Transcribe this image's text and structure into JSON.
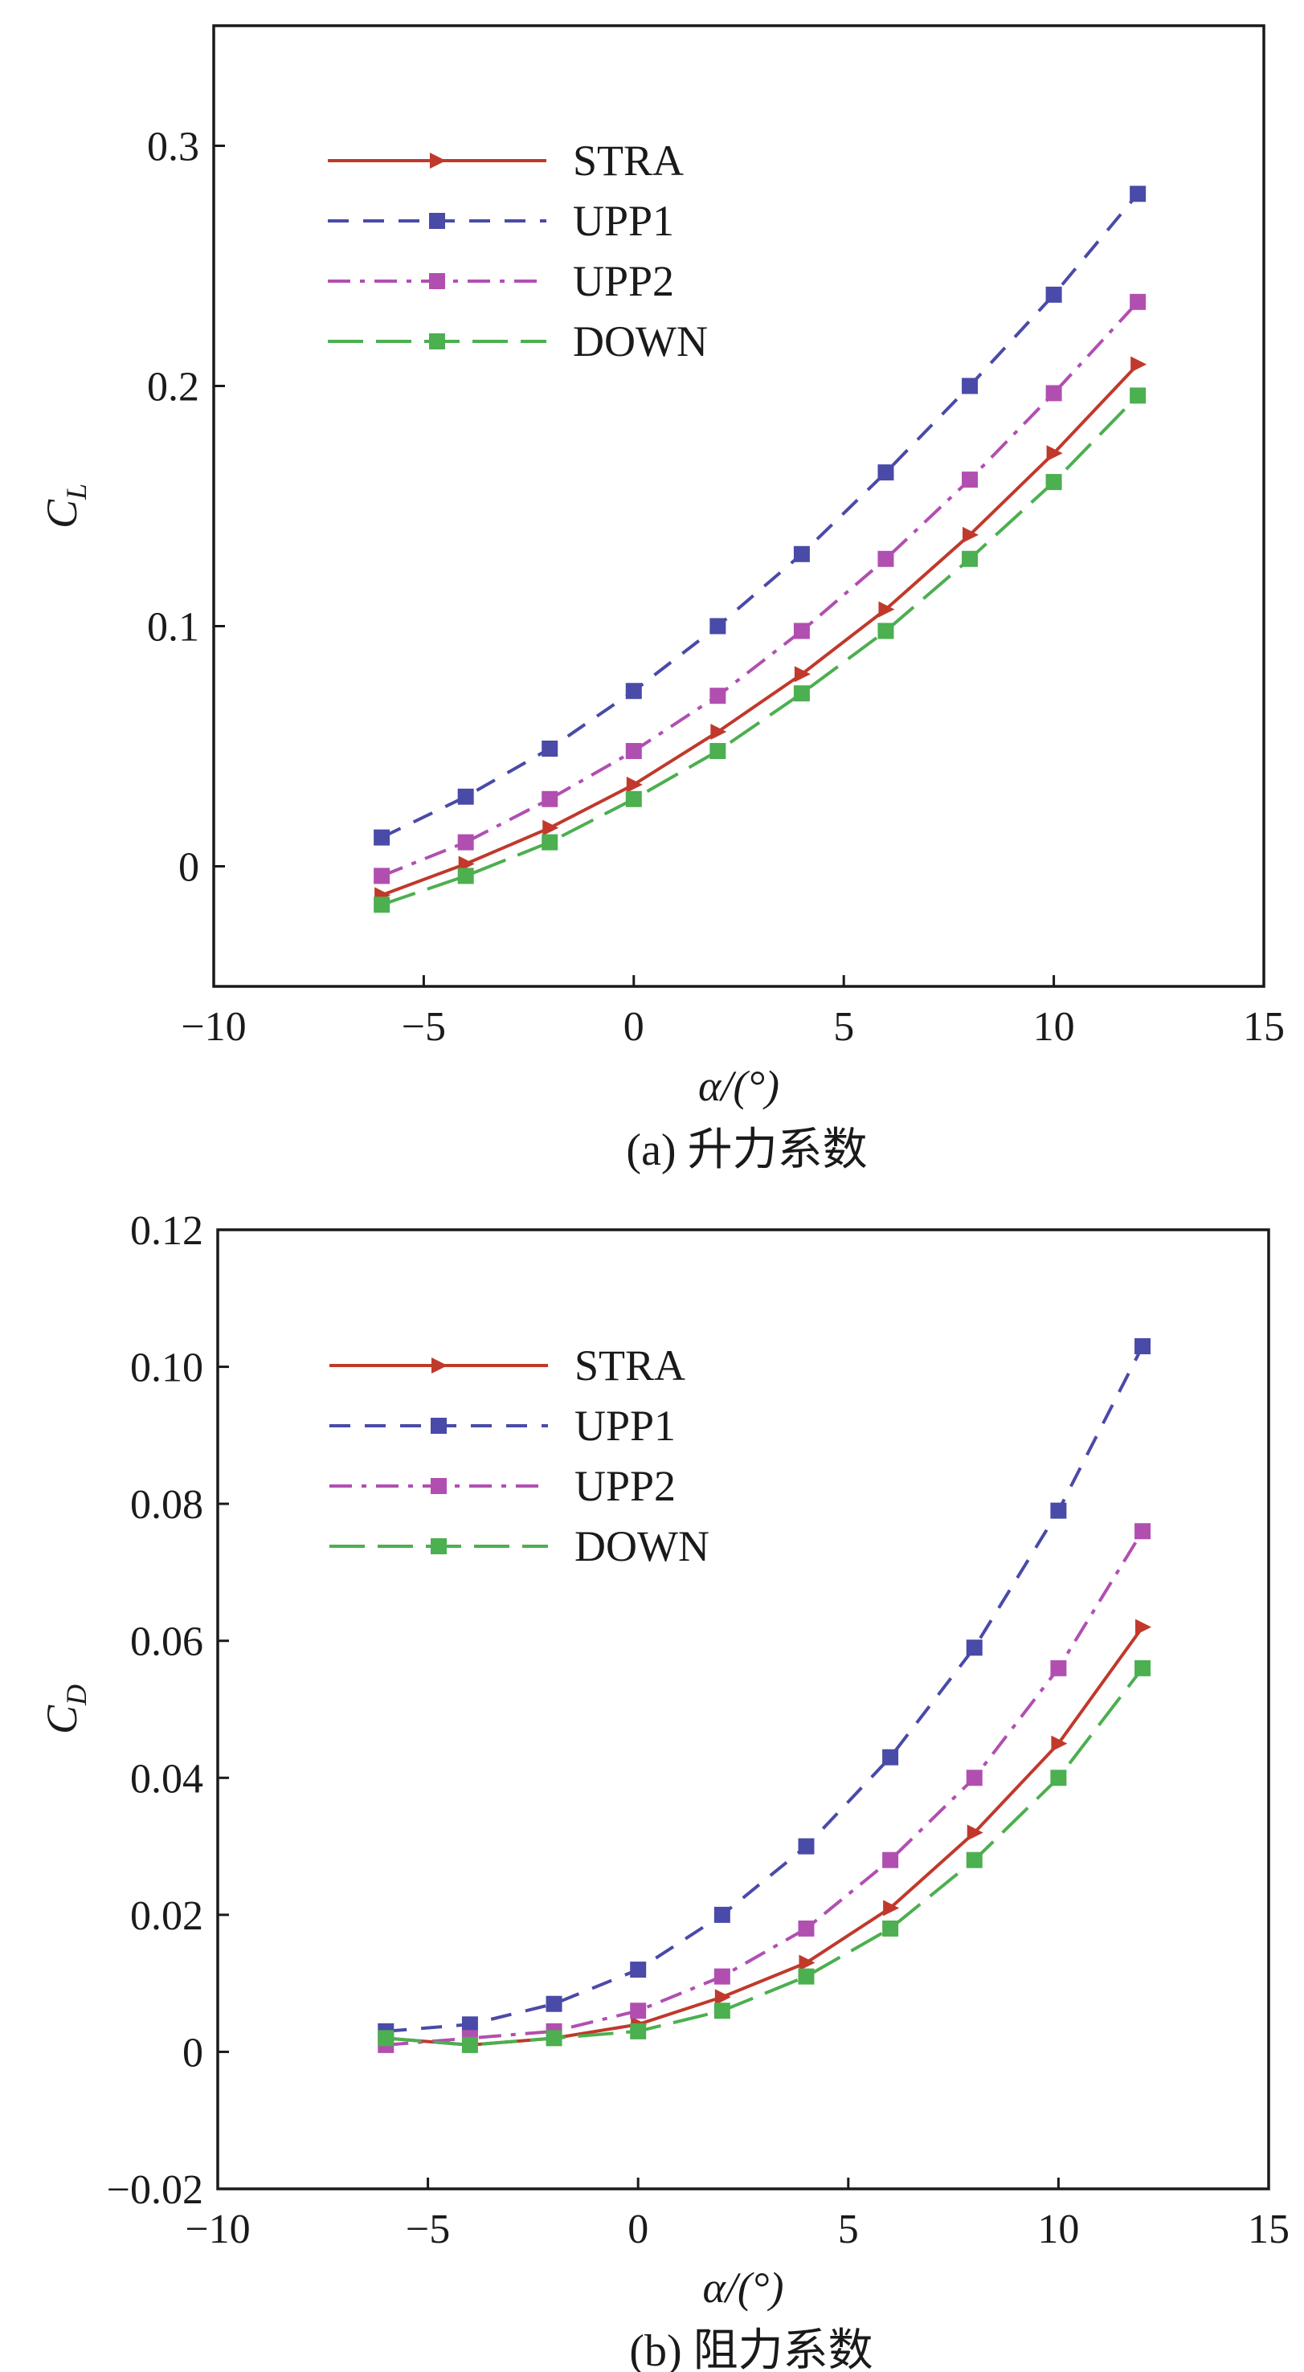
{
  "chart_data": [
    {
      "type": "line",
      "caption": "(a) 升力系数",
      "xlabel": "α/(°)",
      "ylabel_main": "C",
      "ylabel_sub": "L",
      "xlim": [
        -10,
        15
      ],
      "ylim": [
        -0.05,
        0.35
      ],
      "xticks": [
        -10,
        -5,
        0,
        5,
        10,
        15
      ],
      "xtick_labels": [
        "−10",
        "−5",
        "0",
        "5",
        "10",
        "15"
      ],
      "yticks": [
        0,
        0.1,
        0.2,
        0.3
      ],
      "ytick_labels": [
        "0",
        "0.1",
        "0.2",
        "0.3"
      ],
      "legend_position": "top-left",
      "x": [
        -6,
        -4,
        -2,
        0,
        2,
        4,
        6,
        8,
        10,
        12
      ],
      "series": [
        {
          "name": "STRA",
          "color": "#c0392b",
          "dash": "solid",
          "marker": "triangle-right",
          "values": [
            -0.012,
            0.001,
            0.016,
            0.034,
            0.056,
            0.08,
            0.107,
            0.138,
            0.172,
            0.209
          ]
        },
        {
          "name": "UPP1",
          "color": "#4a4aa8",
          "dash": "dash",
          "marker": "square",
          "values": [
            0.012,
            0.029,
            0.049,
            0.073,
            0.1,
            0.13,
            0.164,
            0.2,
            0.238,
            0.28
          ]
        },
        {
          "name": "UPP2",
          "color": "#b14fb1",
          "dash": "dashdot",
          "marker": "square",
          "values": [
            -0.004,
            0.01,
            0.028,
            0.048,
            0.071,
            0.098,
            0.128,
            0.161,
            0.197,
            0.235
          ]
        },
        {
          "name": "DOWN",
          "color": "#4caf50",
          "dash": "longdash",
          "marker": "square",
          "values": [
            -0.016,
            -0.004,
            0.01,
            0.028,
            0.048,
            0.072,
            0.098,
            0.128,
            0.16,
            0.196
          ]
        }
      ]
    },
    {
      "type": "line",
      "caption": "(b) 阻力系数",
      "xlabel": "α/(°)",
      "ylabel_main": "C",
      "ylabel_sub": "D",
      "xlim": [
        -10,
        15
      ],
      "ylim": [
        -0.02,
        0.12
      ],
      "xticks": [
        -10,
        -5,
        0,
        5,
        10,
        15
      ],
      "xtick_labels": [
        "−10",
        "−5",
        "0",
        "5",
        "10",
        "15"
      ],
      "yticks": [
        -0.02,
        0,
        0.02,
        0.04,
        0.06,
        0.08,
        0.1,
        0.12
      ],
      "ytick_labels": [
        "−0.02",
        "0",
        "0.02",
        "0.04",
        "0.06",
        "0.08",
        "0.10",
        "0.12"
      ],
      "legend_position": "top-left",
      "x": [
        -6,
        -4,
        -2,
        0,
        2,
        4,
        6,
        8,
        10,
        12
      ],
      "series": [
        {
          "name": "STRA",
          "color": "#c0392b",
          "dash": "solid",
          "marker": "triangle-right",
          "values": [
            0.002,
            0.001,
            0.002,
            0.004,
            0.008,
            0.013,
            0.021,
            0.032,
            0.045,
            0.062
          ]
        },
        {
          "name": "UPP1",
          "color": "#4a4aa8",
          "dash": "dash",
          "marker": "square",
          "values": [
            0.003,
            0.004,
            0.007,
            0.012,
            0.02,
            0.03,
            0.043,
            0.059,
            0.079,
            0.103
          ]
        },
        {
          "name": "UPP2",
          "color": "#b14fb1",
          "dash": "dashdot",
          "marker": "square",
          "values": [
            0.001,
            0.002,
            0.003,
            0.006,
            0.011,
            0.018,
            0.028,
            0.04,
            0.056,
            0.076
          ]
        },
        {
          "name": "DOWN",
          "color": "#4caf50",
          "dash": "longdash",
          "marker": "square",
          "values": [
            0.002,
            0.001,
            0.002,
            0.003,
            0.006,
            0.011,
            0.018,
            0.028,
            0.04,
            0.056
          ]
        }
      ]
    }
  ]
}
